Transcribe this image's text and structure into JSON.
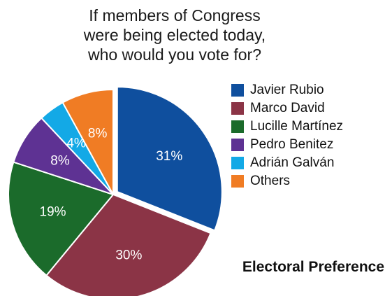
{
  "title_lines": [
    "If members of Congress",
    "were being elected today,",
    "who would you vote for?"
  ],
  "subtitle": "Electoral Preference",
  "chart_data": {
    "type": "pie",
    "title": "If members of Congress were being elected today, who would you vote for?",
    "subtitle": "Electoral Preference",
    "categories": [
      "Javier Rubio",
      "Marco David",
      "Lucille Martínez",
      "Pedro Benitez",
      "Adrián Galván",
      "Others"
    ],
    "values": [
      31,
      30,
      19,
      8,
      4,
      8
    ],
    "labels": [
      "31%",
      "30%",
      "19%",
      "8%",
      "4%",
      "8%"
    ],
    "colors": [
      "#0f4f9e",
      "#8b3446",
      "#1b6b2b",
      "#5e3293",
      "#13a9e6",
      "#f07c24"
    ],
    "exploded": "Javier Rubio",
    "start_angle": "12 o'clock",
    "direction": "clockwise",
    "legend_position": "right"
  }
}
